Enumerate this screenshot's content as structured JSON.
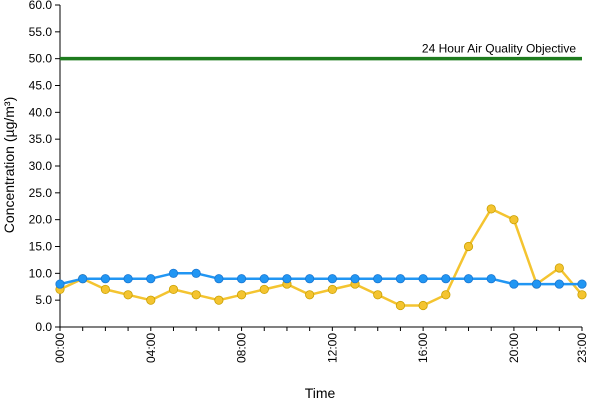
{
  "chart_data": {
    "type": "line",
    "title": "",
    "xlabel": "Time",
    "ylabel": "Concentration (µg/m³)",
    "ylim": [
      0,
      60
    ],
    "y_ticks": [
      "0.0",
      "5.0",
      "10.0",
      "15.0",
      "20.0",
      "25.0",
      "30.0",
      "35.0",
      "40.0",
      "45.0",
      "50.0",
      "55.0",
      "60.0"
    ],
    "x_ticks": [
      "00:00",
      "04:00",
      "08:00",
      "12:00",
      "16:00",
      "20:00",
      "23:00"
    ],
    "grid": false,
    "legend": "none",
    "x": [
      "00:00",
      "01:00",
      "02:00",
      "03:00",
      "04:00",
      "05:00",
      "06:00",
      "07:00",
      "08:00",
      "09:00",
      "10:00",
      "11:00",
      "12:00",
      "13:00",
      "14:00",
      "15:00",
      "16:00",
      "17:00",
      "18:00",
      "19:00",
      "20:00",
      "21:00",
      "22:00",
      "23:00"
    ],
    "series": [
      {
        "color": "#2196F3",
        "values": [
          8,
          9,
          9,
          9,
          9,
          10,
          10,
          9,
          9,
          9,
          9,
          9,
          9,
          9,
          9,
          9,
          9,
          9,
          9,
          9,
          8,
          8,
          8,
          8
        ]
      },
      {
        "color": "#F4C430",
        "values": [
          7,
          9,
          7,
          6,
          5,
          7,
          6,
          5,
          6,
          7,
          8,
          6,
          7,
          8,
          6,
          4,
          4,
          6,
          15,
          22,
          20,
          8,
          11,
          6
        ]
      }
    ],
    "reference_line": {
      "label": "24 Hour Air Quality Objective",
      "value": 50,
      "color": "#1E7B1E"
    }
  }
}
